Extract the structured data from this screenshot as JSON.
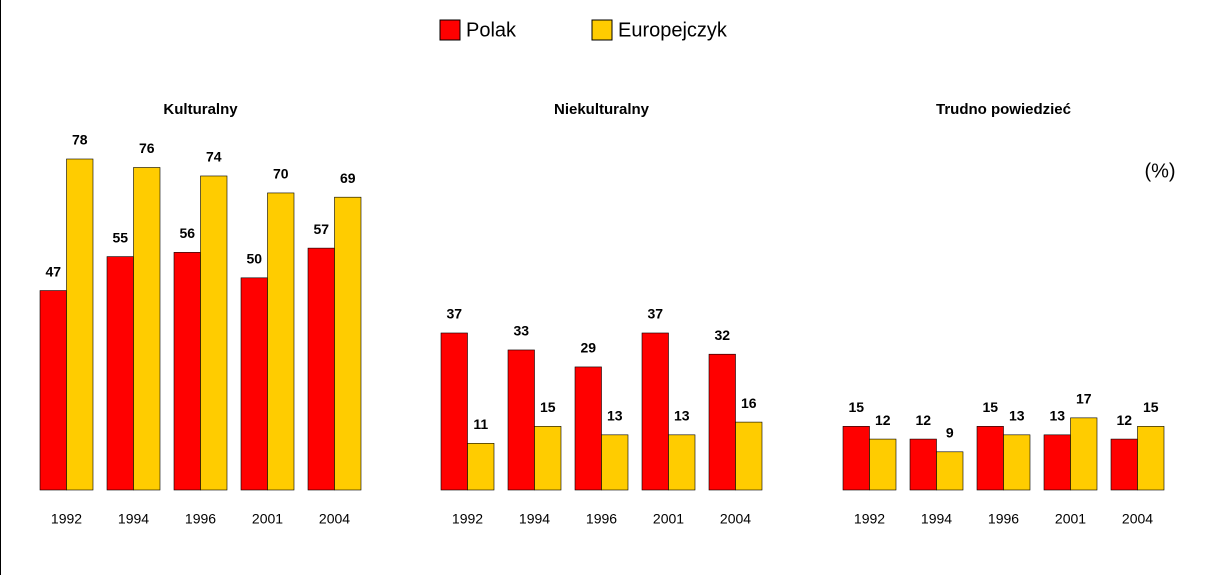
{
  "chart_data": [
    {
      "type": "bar",
      "title": "Kulturalny",
      "categories": [
        "1992",
        "1994",
        "1996",
        "2001",
        "2004"
      ],
      "series": [
        {
          "name": "Polak",
          "color": "#ff0000",
          "values": [
            47,
            55,
            56,
            50,
            57
          ]
        },
        {
          "name": "Europejczyk",
          "color": "#ffcc00",
          "values": [
            78,
            76,
            74,
            70,
            69
          ]
        }
      ]
    },
    {
      "type": "bar",
      "title": "Niekulturalny",
      "categories": [
        "1992",
        "1994",
        "1996",
        "2001",
        "2004"
      ],
      "series": [
        {
          "name": "Polak",
          "color": "#ff0000",
          "values": [
            37,
            33,
            29,
            37,
            32
          ]
        },
        {
          "name": "Europejczyk",
          "color": "#ffcc00",
          "values": [
            11,
            15,
            13,
            13,
            16
          ]
        }
      ]
    },
    {
      "type": "bar",
      "title": "Trudno powiedzieć",
      "annotation": "(%)",
      "categories": [
        "1992",
        "1994",
        "1996",
        "2001",
        "2004"
      ],
      "series": [
        {
          "name": "Polak",
          "color": "#ff0000",
          "values": [
            15,
            12,
            15,
            13,
            12
          ]
        },
        {
          "name": "Europejczyk",
          "color": "#ffcc00",
          "values": [
            12,
            9,
            13,
            17,
            15
          ]
        }
      ]
    }
  ]
}
